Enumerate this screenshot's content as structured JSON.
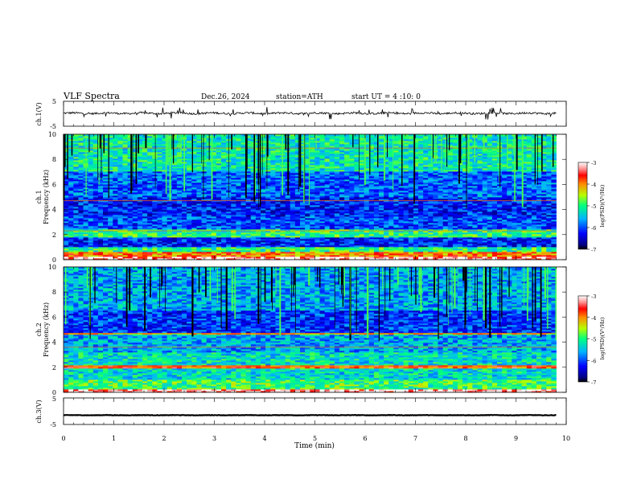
{
  "header": {
    "title": "VLF  Spectra",
    "date": "Dec.26, 2024",
    "station": "station=ATH",
    "start": "start  UT  =   4  :10: 0"
  },
  "chart_data": [
    {
      "type": "line",
      "panel": "ch1-waveform",
      "ylabel": "ch.1(V)",
      "ylim": [
        -5,
        5
      ],
      "ytick_labels": [
        "5",
        "-5"
      ],
      "xlim": [
        0,
        10
      ],
      "baseline_v": 0.2,
      "noise_amplitude_v": 0.8,
      "spike_amplitude_v": 2.5
    },
    {
      "type": "heatmap",
      "panel": "ch1-spectrogram",
      "ylabel": "ch.1\nFrequency (kHz)",
      "ylim": [
        0,
        10
      ],
      "ytick_labels": [
        "10",
        "8",
        "6",
        "4",
        "2",
        "0"
      ],
      "xlim": [
        0,
        10
      ],
      "data_end_min": 9.8,
      "colorbar": {
        "label": "log(PSD)(V²/Hz)",
        "range": [
          -7,
          -3
        ],
        "tick_labels": [
          "-3",
          "-4",
          "-5",
          "-6",
          "-7"
        ]
      },
      "bands_khz": [
        {
          "from": 0,
          "to": 0.25,
          "level": -3.2
        },
        {
          "from": 0.25,
          "to": 0.6,
          "level": -4.0
        },
        {
          "from": 0.6,
          "to": 1.0,
          "level": -5.0
        },
        {
          "from": 1.0,
          "to": 1.8,
          "level": -6.2
        },
        {
          "from": 1.8,
          "to": 2.4,
          "level": -5.0
        },
        {
          "from": 2.4,
          "to": 3.4,
          "level": -6.0
        },
        {
          "from": 3.4,
          "to": 5.0,
          "level": -6.2
        },
        {
          "from": 5.0,
          "to": 7.0,
          "level": -5.9
        },
        {
          "from": 7.0,
          "to": 10.0,
          "level": -5.2
        }
      ],
      "tone_lines_khz": [
        2.3,
        4.7,
        8.9
      ],
      "pulse_count": 90
    },
    {
      "type": "heatmap",
      "panel": "ch2-spectrogram",
      "ylabel": "ch.2\nFrequency (kHz)",
      "ylim": [
        0,
        10
      ],
      "ytick_labels": [
        "10",
        "8",
        "6",
        "4",
        "2",
        "0"
      ],
      "xlim": [
        0,
        10
      ],
      "data_end_min": 9.8,
      "colorbar": {
        "label": "log(PSD)(V²/Hz)",
        "range": [
          -7,
          -3
        ],
        "tick_labels": [
          "-3",
          "-4",
          "-5",
          "-6",
          "-7"
        ]
      },
      "bands_khz": [
        {
          "from": 0,
          "to": 0.3,
          "level": -3.2
        },
        {
          "from": 0.3,
          "to": 1.0,
          "level": -4.9
        },
        {
          "from": 1.0,
          "to": 1.9,
          "level": -5.3
        },
        {
          "from": 1.9,
          "to": 2.2,
          "level": -3.8
        },
        {
          "from": 2.2,
          "to": 3.2,
          "level": -5.3
        },
        {
          "from": 3.2,
          "to": 4.6,
          "level": -5.6
        },
        {
          "from": 4.6,
          "to": 4.8,
          "level": -4.3
        },
        {
          "from": 4.8,
          "to": 6.5,
          "level": -6.1
        },
        {
          "from": 6.5,
          "to": 10.0,
          "level": -5.6
        }
      ],
      "tone_lines_khz": [
        2.1,
        3.6,
        4.7
      ],
      "pulse_count": 90
    },
    {
      "type": "line",
      "panel": "ch3-waveform",
      "ylabel": "ch.3(V)",
      "ylim": [
        -5,
        5
      ],
      "ytick_labels": [
        "5",
        "-5"
      ],
      "xlim": [
        0,
        10
      ],
      "xlabel": "Time  (min)",
      "xtick_labels": [
        "0",
        "1",
        "2",
        "3",
        "4",
        "5",
        "6",
        "7",
        "8",
        "9",
        "10"
      ],
      "baseline_v": -1.5,
      "noise_amplitude_v": 0.15
    }
  ]
}
